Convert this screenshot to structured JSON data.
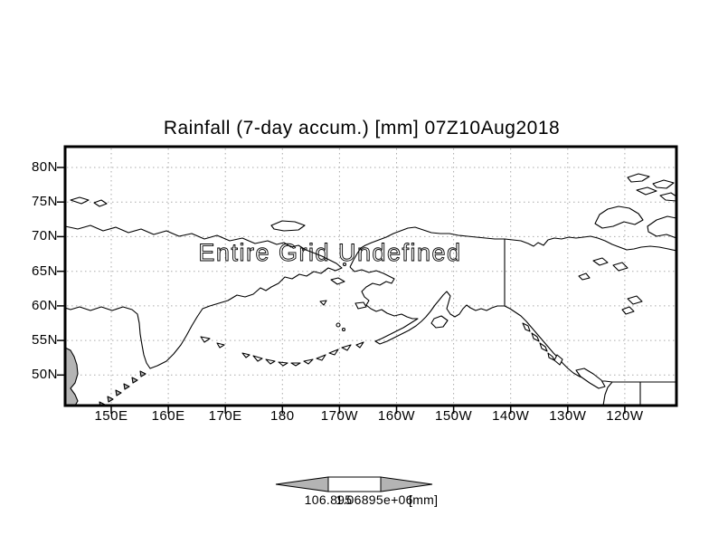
{
  "title": "Rainfall (7-day accum.) [mm] 07Z10Aug2018",
  "map": {
    "undefined_label": "Entire Grid Undefined",
    "lat_labels": [
      "80N",
      "75N",
      "70N",
      "65N",
      "60N",
      "55N",
      "50N"
    ],
    "lon_labels": [
      "150E",
      "160E",
      "170E",
      "180",
      "170W",
      "160W",
      "150W",
      "140W",
      "130W",
      "120W"
    ]
  },
  "colorbar": {
    "tick_left": "106.895",
    "tick_right": "1.06895e+06",
    "unit": "[mm]"
  },
  "colors": {
    "coast": "#000000",
    "grid": "#aaaaaa",
    "land_shade": "#b4b4b4",
    "frame": "#000000",
    "background": "#ffffff",
    "undefined_text": "#000000"
  }
}
